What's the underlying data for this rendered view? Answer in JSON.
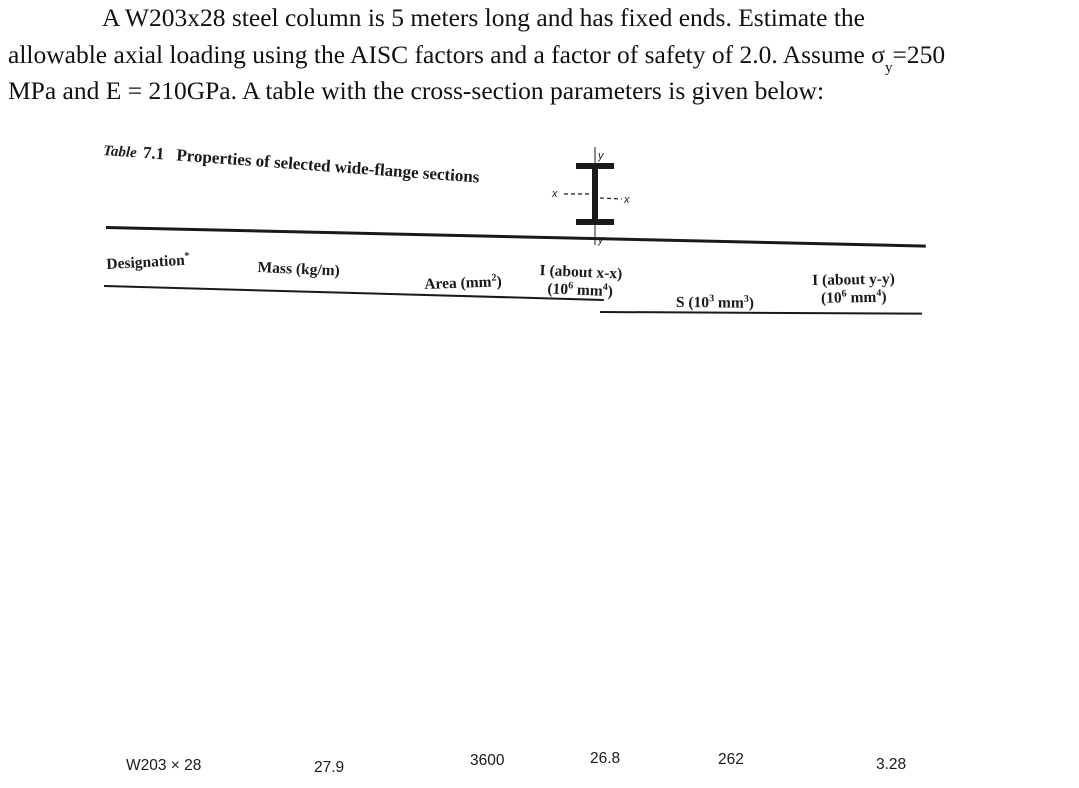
{
  "problem": {
    "line1": "A W203x28 steel column is 5 meters long and has fixed ends.  Estimate the",
    "line2_a": "allowable axial loading using the AISC factors and a factor of safety of 2.0.  Assume σ",
    "line2_sub": "y",
    "line2_b": "=250",
    "line3": "MPa and E = 210GPa.  A table with the cross-section parameters is given below:"
  },
  "table": {
    "label_prefix": "Table",
    "number": "7.1",
    "title": "Properties of selected wide-flange sections",
    "diagram_labels": {
      "y_top": "y",
      "x_left": "x",
      "x_right": "x",
      "y_bottom": "y"
    },
    "headers": {
      "designation": "Designation",
      "designation_mark": "*",
      "mass": "Mass (kg/m)",
      "area": "Area (mm",
      "area_exp": "2",
      "area_close": ")",
      "ix_line1": "I (about x-x)",
      "ix_line2": "(10",
      "ix_exp1": "6",
      "ix_unit": " mm",
      "ix_exp2": "4",
      "ix_close": ")",
      "s": "S (10",
      "s_exp1": "3",
      "s_unit": " mm",
      "s_exp2": "3",
      "s_close": ")",
      "iy_line1": "I (about y-y)",
      "iy_line2": "(10",
      "iy_exp1": "6",
      "iy_unit": " mm",
      "iy_exp2": "4",
      "iy_close": ")"
    },
    "row": {
      "designation": "W203 × 28",
      "mass": "27.9",
      "area": "3600",
      "ix": "26.8",
      "s": "262",
      "iy": "3.28"
    }
  }
}
